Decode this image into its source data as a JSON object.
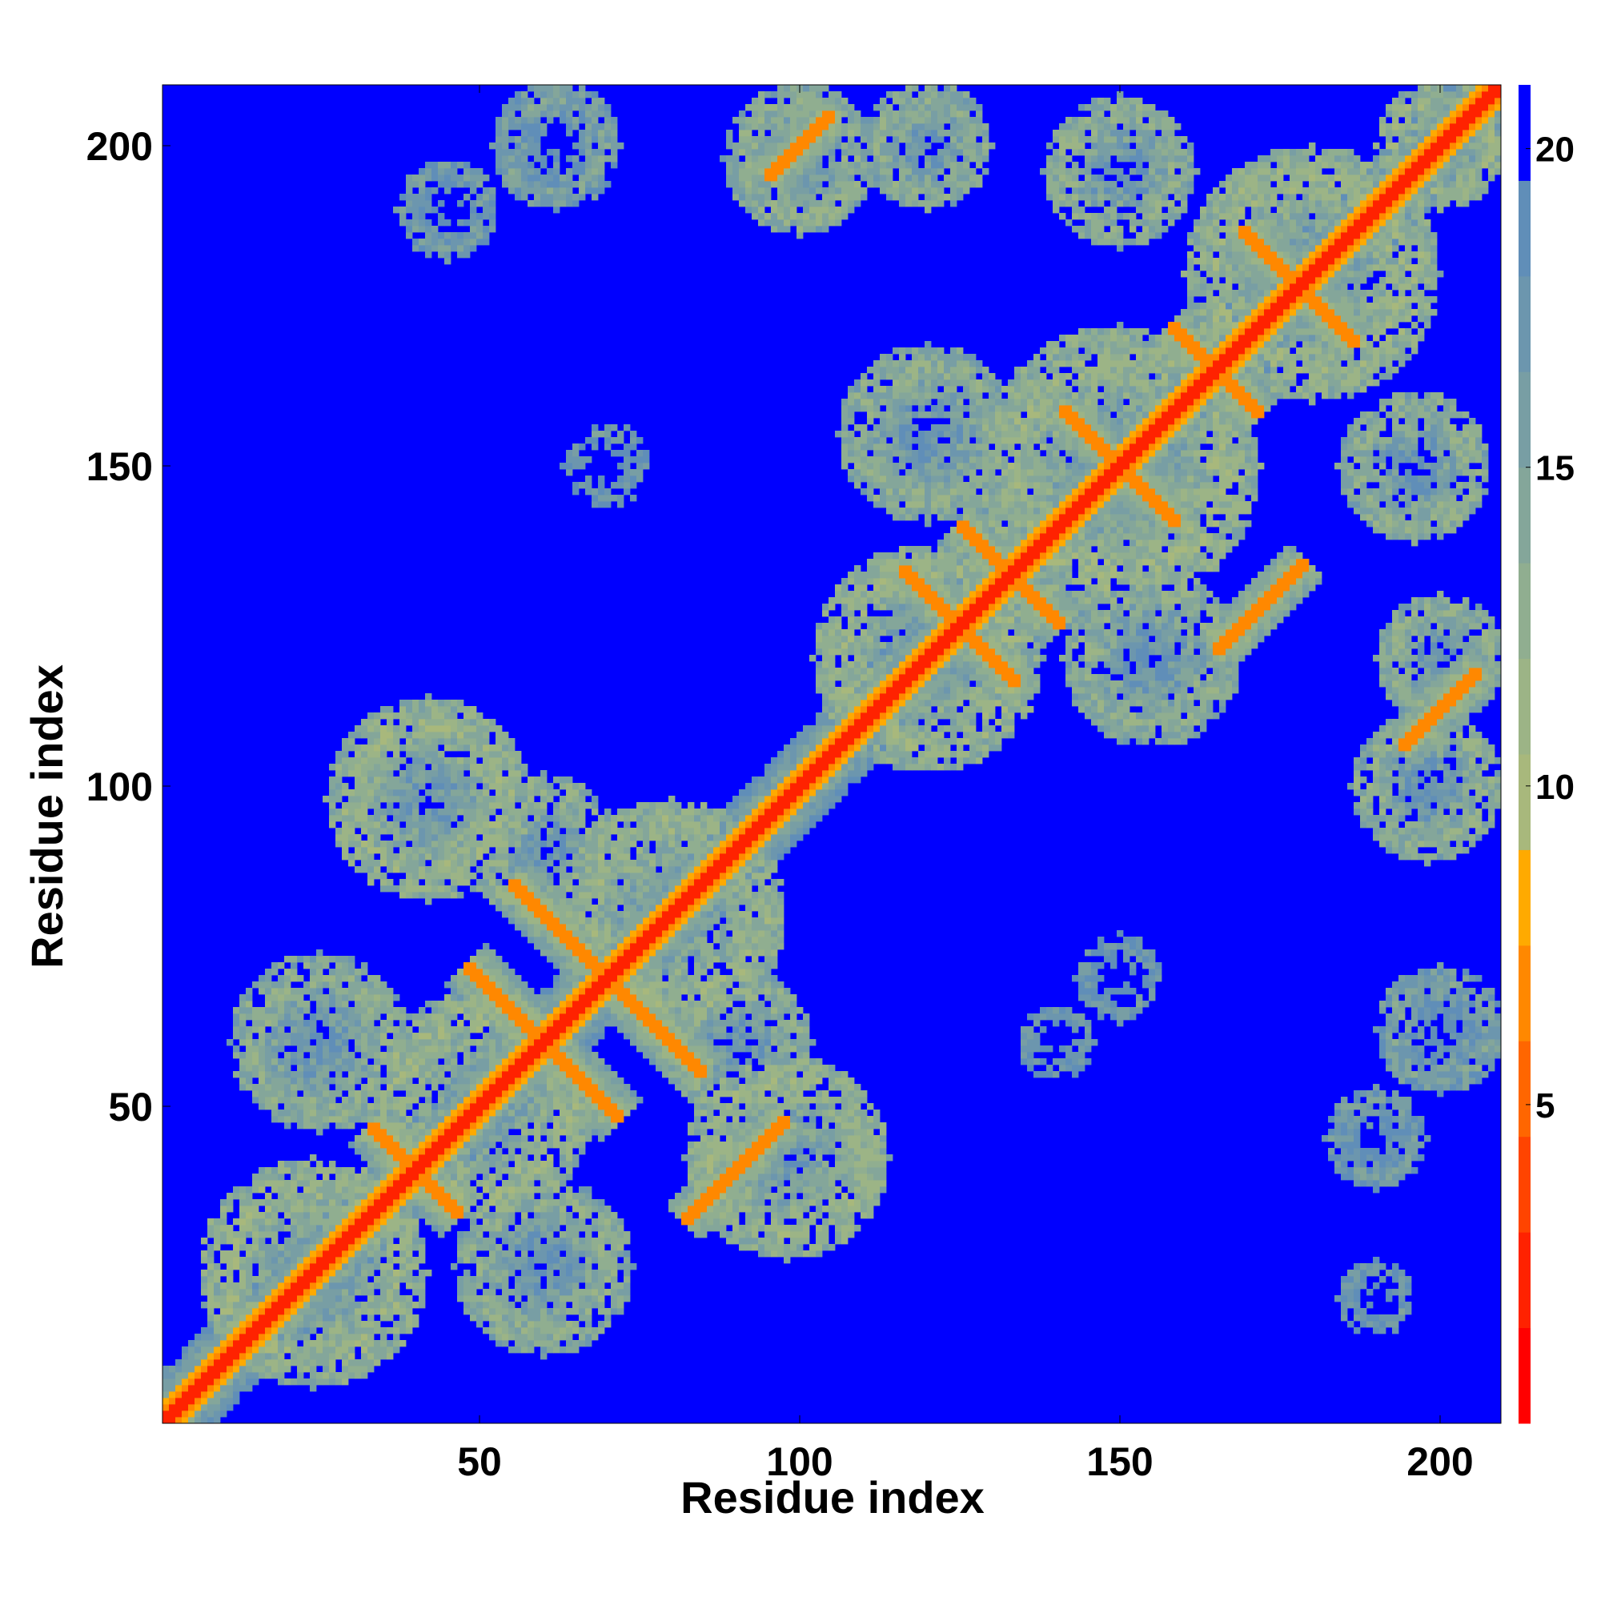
{
  "chart_data": {
    "type": "heatmap",
    "title": "",
    "xlabel": "Residue index",
    "ylabel": "Residue index",
    "n_residues": 209,
    "xlim": [
      0.5,
      209.5
    ],
    "ylim": [
      0.5,
      209.5
    ],
    "x_ticks": [
      50,
      100,
      150,
      200
    ],
    "y_ticks": [
      50,
      100,
      150,
      200
    ],
    "x_tick_labels": [
      "50",
      "100",
      "150",
      "200"
    ],
    "y_tick_labels": [
      "50",
      "100",
      "150",
      "200"
    ],
    "colorbar": {
      "range": [
        0,
        21
      ],
      "ticks": [
        5,
        10,
        15,
        20
      ],
      "tick_labels": [
        "5",
        "10",
        "15",
        "20"
      ],
      "bands": [
        {
          "from": 0,
          "to": 1.5,
          "color": "#ff0000"
        },
        {
          "from": 1.5,
          "to": 3,
          "color": "#ff2200"
        },
        {
          "from": 3,
          "to": 4.5,
          "color": "#ff4400"
        },
        {
          "from": 4.5,
          "to": 6,
          "color": "#ff6600"
        },
        {
          "from": 6,
          "to": 7.5,
          "color": "#ff8800"
        },
        {
          "from": 7.5,
          "to": 9,
          "color": "#ffaa00"
        },
        {
          "from": 9,
          "to": 10.5,
          "color": "#a8b87c"
        },
        {
          "from": 10.5,
          "to": 12,
          "color": "#9cb486"
        },
        {
          "from": 12,
          "to": 13.5,
          "color": "#90ae90"
        },
        {
          "from": 13.5,
          "to": 15,
          "color": "#84a69a"
        },
        {
          "from": 15,
          "to": 16.5,
          "color": "#789ea4"
        },
        {
          "from": 16.5,
          "to": 18,
          "color": "#6c96ae"
        },
        {
          "from": 18,
          "to": 19.5,
          "color": "#608eb8"
        },
        {
          "from": 19.5,
          "to": 21,
          "color": "#0000ff"
        }
      ]
    },
    "background_value": 21,
    "background_color": "#0000ff",
    "diagonal": {
      "value": 2.5,
      "near_value": 5
    },
    "features": [
      {
        "kind": "anti",
        "center": [
          60,
          60
        ],
        "length": 24,
        "value": 6
      },
      {
        "kind": "anti",
        "center": [
          70,
          70
        ],
        "length": 30,
        "value": 6
      },
      {
        "kind": "anti",
        "center": [
          40,
          40
        ],
        "length": 14,
        "value": 7
      },
      {
        "kind": "anti",
        "center": [
          125,
          125
        ],
        "length": 18,
        "value": 6
      },
      {
        "kind": "anti",
        "center": [
          133,
          133
        ],
        "length": 16,
        "value": 6
      },
      {
        "kind": "anti",
        "center": [
          150,
          150
        ],
        "length": 18,
        "value": 6
      },
      {
        "kind": "anti",
        "center": [
          165,
          165
        ],
        "length": 14,
        "value": 7
      },
      {
        "kind": "anti",
        "center": [
          178,
          178
        ],
        "length": 18,
        "value": 7
      },
      {
        "kind": "parallel",
        "center": [
          90,
          40
        ],
        "length": 16,
        "value": 7
      },
      {
        "kind": "parallel",
        "center": [
          200,
          112
        ],
        "length": 12,
        "value": 7
      },
      {
        "kind": "parallel",
        "center": [
          172,
          128
        ],
        "length": 14,
        "value": 7
      },
      {
        "kind": "parallel",
        "center": [
          100,
          200
        ],
        "length": 10,
        "value": 7
      },
      {
        "kind": "blob",
        "center": [
          98,
          42
        ],
        "radius": 16,
        "value": 12
      },
      {
        "kind": "blob",
        "center": [
          42,
          98
        ],
        "radius": 16,
        "value": 12
      },
      {
        "kind": "blob",
        "center": [
          24,
          24
        ],
        "radius": 18,
        "value": 12
      },
      {
        "kind": "blob",
        "center": [
          50,
          50
        ],
        "radius": 18,
        "value": 12
      },
      {
        "kind": "blob",
        "center": [
          80,
          80
        ],
        "radius": 18,
        "value": 12
      },
      {
        "kind": "blob",
        "center": [
          120,
          120
        ],
        "radius": 18,
        "value": 12
      },
      {
        "kind": "blob",
        "center": [
          150,
          150
        ],
        "radius": 22,
        "value": 12
      },
      {
        "kind": "blob",
        "center": [
          180,
          180
        ],
        "radius": 20,
        "value": 12
      },
      {
        "kind": "blob",
        "center": [
          200,
          200
        ],
        "radius": 10,
        "value": 12
      },
      {
        "kind": "blob",
        "center": [
          196,
          150
        ],
        "radius": 12,
        "value": 13
      },
      {
        "kind": "blob",
        "center": [
          150,
          196
        ],
        "radius": 12,
        "value": 13
      },
      {
        "kind": "blob",
        "center": [
          200,
          120
        ],
        "radius": 10,
        "value": 13
      },
      {
        "kind": "blob",
        "center": [
          120,
          200
        ],
        "radius": 10,
        "value": 13
      },
      {
        "kind": "blob",
        "center": [
          198,
          100
        ],
        "radius": 12,
        "value": 13
      },
      {
        "kind": "blob",
        "center": [
          100,
          198
        ],
        "radius": 12,
        "value": 13
      },
      {
        "kind": "blob",
        "center": [
          120,
          155
        ],
        "radius": 14,
        "value": 13
      },
      {
        "kind": "blob",
        "center": [
          155,
          120
        ],
        "radius": 14,
        "value": 13
      },
      {
        "kind": "blob",
        "center": [
          60,
          25
        ],
        "radius": 14,
        "value": 13
      },
      {
        "kind": "blob",
        "center": [
          25,
          60
        ],
        "radius": 14,
        "value": 13
      },
      {
        "kind": "blob",
        "center": [
          90,
          60
        ],
        "radius": 12,
        "value": 13
      },
      {
        "kind": "blob",
        "center": [
          60,
          90
        ],
        "radius": 12,
        "value": 13
      },
      {
        "kind": "blob",
        "center": [
          62,
          200
        ],
        "radius": 10,
        "value": 15
      },
      {
        "kind": "blob",
        "center": [
          200,
          62
        ],
        "radius": 10,
        "value": 15
      },
      {
        "kind": "blob",
        "center": [
          190,
          45
        ],
        "radius": 8,
        "value": 16
      },
      {
        "kind": "blob",
        "center": [
          45,
          190
        ],
        "radius": 8,
        "value": 16
      },
      {
        "kind": "blob",
        "center": [
          70,
          150
        ],
        "radius": 7,
        "value": 17
      },
      {
        "kind": "blob",
        "center": [
          150,
          70
        ],
        "radius": 7,
        "value": 17
      },
      {
        "kind": "blob",
        "center": [
          190,
          20
        ],
        "radius": 6,
        "value": 17
      },
      {
        "kind": "blob",
        "center": [
          140,
          60
        ],
        "radius": 6,
        "value": 17
      }
    ]
  }
}
